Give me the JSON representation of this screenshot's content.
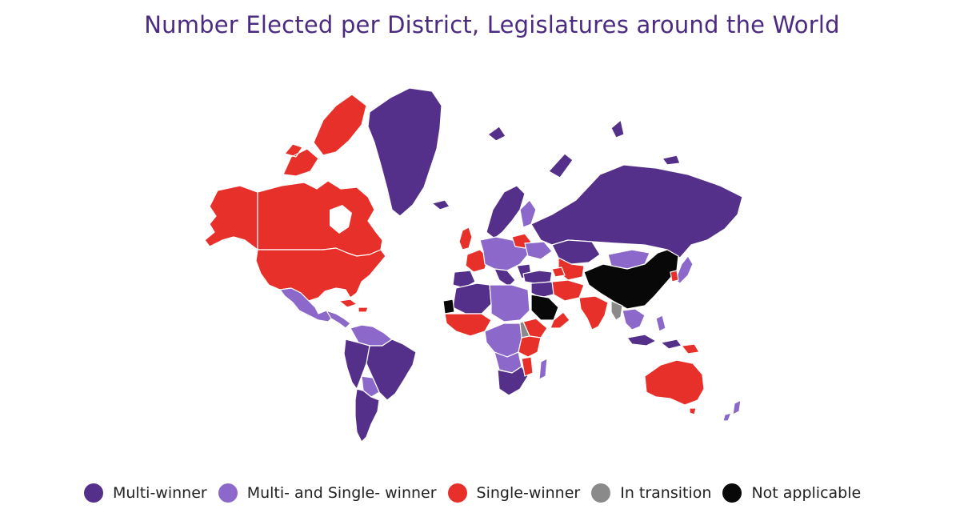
{
  "title": "Number Elected per District, Legislatures around the World",
  "colors": {
    "title": "#4b2a82",
    "multi_winner": "#55308a",
    "mixed": "#8b68c9",
    "single_winner": "#e8302a",
    "in_transition": "#8a8a8a",
    "not_applicable": "#080808",
    "border": "#ffffff"
  },
  "legend": [
    {
      "label": "Multi-winner",
      "color": "#55308a"
    },
    {
      "label": "Multi- and Single- winner",
      "color": "#8b68c9"
    },
    {
      "label": "Single-winner",
      "color": "#e8302a"
    },
    {
      "label": "In transition",
      "color": "#8a8a8a"
    },
    {
      "label": "Not applicable",
      "color": "#080808"
    }
  ]
}
